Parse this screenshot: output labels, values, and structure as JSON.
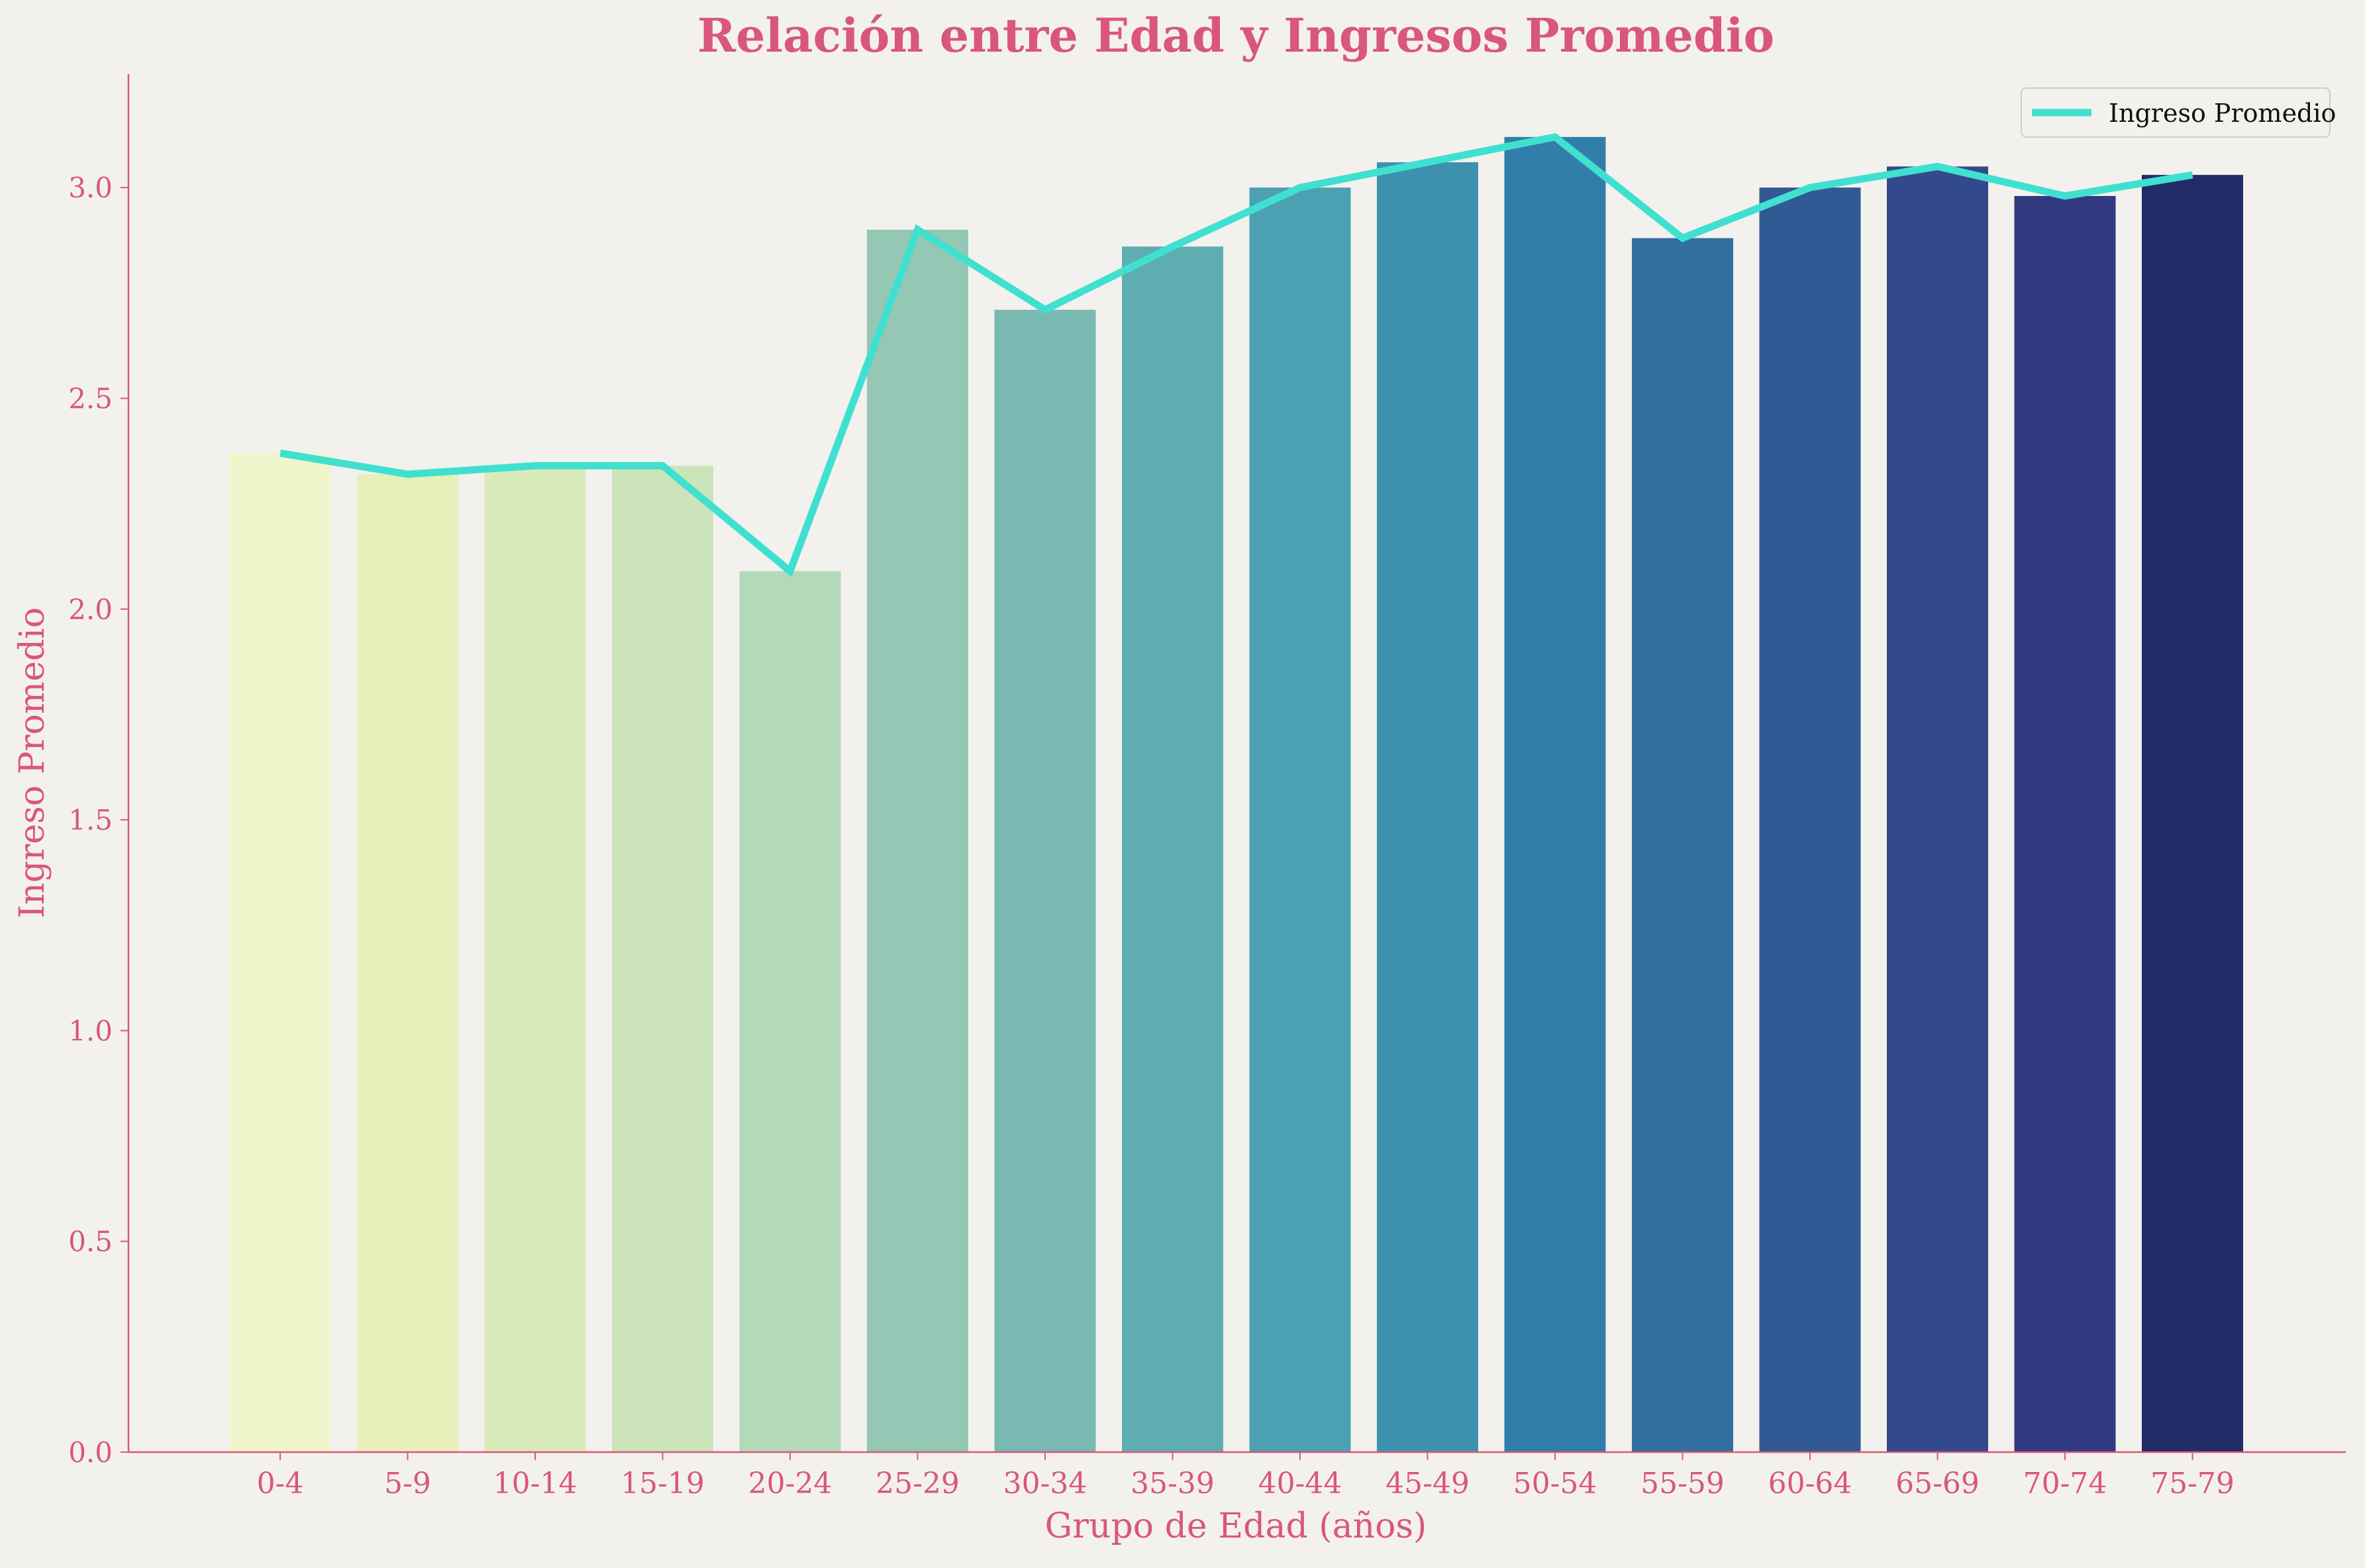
{
  "chart_data": {
    "type": "bar",
    "title": "Relación entre Edad y Ingresos Promedio",
    "xlabel": "Grupo de Edad (años)",
    "ylabel": "Ingreso Promedio",
    "categories": [
      "0-4",
      "5-9",
      "10-14",
      "15-19",
      "20-24",
      "25-29",
      "30-34",
      "35-39",
      "40-44",
      "45-49",
      "50-54",
      "55-59",
      "60-64",
      "65-69",
      "70-74",
      "75-79"
    ],
    "values": [
      2.37,
      2.32,
      2.34,
      2.34,
      2.09,
      2.9,
      2.71,
      2.86,
      3.0,
      3.06,
      3.12,
      2.88,
      3.0,
      3.05,
      2.98,
      3.03
    ],
    "series": [
      {
        "name": "Ingreso Promedio",
        "type": "line",
        "values": [
          2.37,
          2.32,
          2.34,
          2.34,
          2.09,
          2.9,
          2.71,
          2.86,
          3.0,
          3.06,
          3.12,
          2.88,
          3.0,
          3.05,
          2.98,
          3.03
        ],
        "color": "#40e0d0"
      }
    ],
    "ylim": [
      0,
      3.28
    ],
    "yticks": [
      "0.0",
      "0.5",
      "1.0",
      "1.5",
      "2.0",
      "2.5",
      "3.0"
    ],
    "bar_colors": [
      "#f0f5cc",
      "#e7f0ba",
      "#d9eabb",
      "#cbe4b9",
      "#b3d9b9",
      "#94c7b4",
      "#79b9b2",
      "#5eadb1",
      "#4ba1b2",
      "#3d91af",
      "#317eaa",
      "#326e9f",
      "#315993",
      "#324a8b",
      "#313a80",
      "#212c66"
    ],
    "grid": false,
    "legend_position": "top-right",
    "colors": {
      "background": "#f3f1ed",
      "text": "#d9577a",
      "axis": "#d9577a",
      "line": "#40e0d0"
    }
  }
}
